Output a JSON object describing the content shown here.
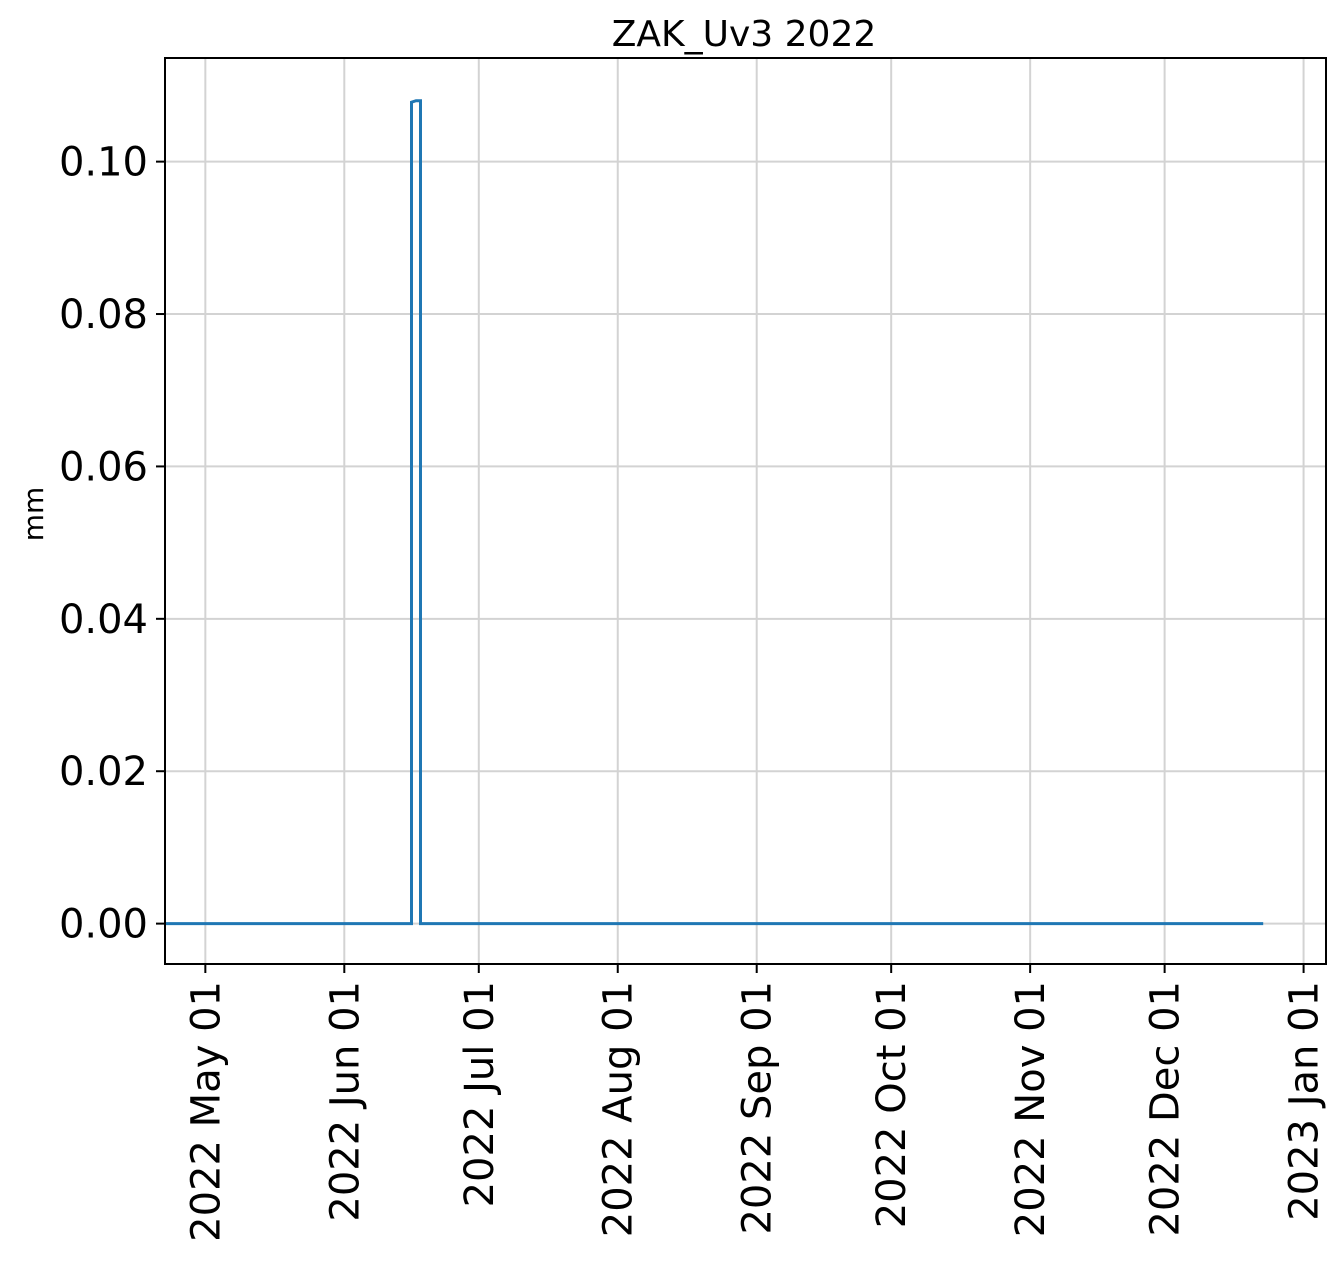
{
  "chart_data": {
    "type": "line",
    "title": "ZAK_Uv3 2022",
    "xlabel": "",
    "ylabel": "mm",
    "grid": true,
    "x_axis": "date",
    "xlim": [
      "2022-04-22",
      "2023-01-06"
    ],
    "ylim": [
      -0.0053,
      0.1136
    ],
    "x_ticks": [
      {
        "date": "2022-05-01",
        "label": "2022 May 01"
      },
      {
        "date": "2022-06-01",
        "label": "2022 Jun 01"
      },
      {
        "date": "2022-07-01",
        "label": "2022 Jul 01"
      },
      {
        "date": "2022-08-01",
        "label": "2022 Aug 01"
      },
      {
        "date": "2022-09-01",
        "label": "2022 Sep 01"
      },
      {
        "date": "2022-10-01",
        "label": "2022 Oct 01"
      },
      {
        "date": "2022-11-01",
        "label": "2022 Nov 01"
      },
      {
        "date": "2022-12-01",
        "label": "2022 Dec 01"
      },
      {
        "date": "2023-01-01",
        "label": "2023 Jan 01"
      }
    ],
    "y_ticks": [
      {
        "value": 0.0,
        "label": "0.00"
      },
      {
        "value": 0.02,
        "label": "0.02"
      },
      {
        "value": 0.04,
        "label": "0.04"
      },
      {
        "value": 0.06,
        "label": "0.06"
      },
      {
        "value": 0.08,
        "label": "0.08"
      },
      {
        "value": 0.1,
        "label": "0.10"
      }
    ],
    "series": [
      {
        "color": "#1f77b4",
        "x": [
          "2022-04-22",
          "2022-06-16",
          "2022-06-16",
          "2022-06-17",
          "2022-06-18",
          "2022-06-18",
          "2022-12-23"
        ],
        "y": [
          0.0,
          0.0,
          0.1078,
          0.108,
          0.108,
          0.0,
          0.0
        ]
      }
    ]
  }
}
